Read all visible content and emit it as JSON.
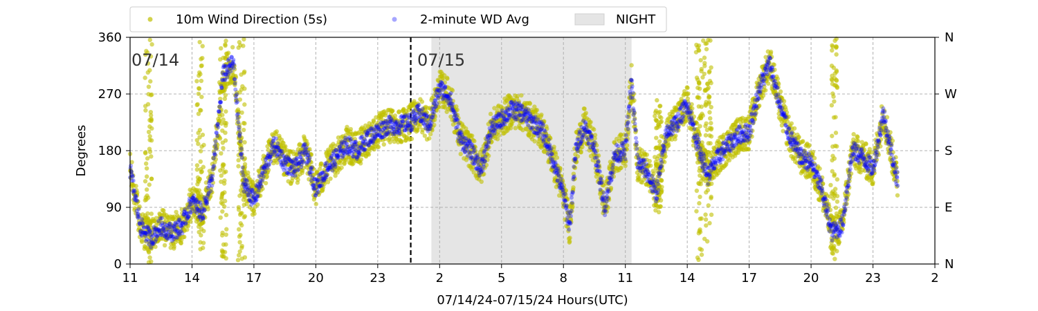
{
  "chart_data": {
    "type": "scatter",
    "xlabel": "07/14/24-07/15/24  Hours(UTC)",
    "ylabel": "Degrees",
    "x_range_hours": [
      11,
      50
    ],
    "ylim": [
      0,
      360
    ],
    "x_ticks": [
      {
        "hour": 11,
        "label": "11"
      },
      {
        "hour": 14,
        "label": "14"
      },
      {
        "hour": 17,
        "label": "17"
      },
      {
        "hour": 20,
        "label": "20"
      },
      {
        "hour": 23,
        "label": "23"
      },
      {
        "hour": 26,
        "label": "2"
      },
      {
        "hour": 29,
        "label": "5"
      },
      {
        "hour": 32,
        "label": "8"
      },
      {
        "hour": 35,
        "label": "11"
      },
      {
        "hour": 38,
        "label": "14"
      },
      {
        "hour": 41,
        "label": "17"
      },
      {
        "hour": 44,
        "label": "20"
      },
      {
        "hour": 47,
        "label": "23"
      },
      {
        "hour": 50,
        "label": "2"
      }
    ],
    "y_ticks": [
      0,
      90,
      180,
      270,
      360
    ],
    "right_ticks": [
      {
        "value": 0,
        "label": "N"
      },
      {
        "value": 90,
        "label": "E"
      },
      {
        "value": 180,
        "label": "S"
      },
      {
        "value": 270,
        "label": "W"
      },
      {
        "value": 360,
        "label": "N"
      }
    ],
    "grid": true,
    "legend": {
      "placement": "top",
      "entries": [
        {
          "label": "10m Wind Direction (5s)",
          "color": "#bfbf00",
          "marker": "dot"
        },
        {
          "label": "2-minute WD Avg",
          "color": "#0000ff",
          "marker": "dot"
        },
        {
          "label": "NIGHT",
          "color": "#e5e5e5",
          "marker": "patch"
        }
      ]
    },
    "day_marker": {
      "hour": 24.6,
      "style": "dashed",
      "color": "#000000"
    },
    "night_band": {
      "start_hour": 25.6,
      "end_hour": 35.3,
      "color": "#e5e5e5"
    },
    "date_labels": [
      {
        "text": "07/14",
        "hour": 11
      },
      {
        "text": "07/15",
        "hour": 24.85
      }
    ],
    "series": [
      {
        "name": "10m Wind Direction (5s)",
        "color": "#bfbf00",
        "spread_deg": 28,
        "trend": [
          [
            11.0,
            150
          ],
          [
            11.5,
            60
          ],
          [
            12.0,
            40
          ],
          [
            12.5,
            60
          ],
          [
            13.0,
            50
          ],
          [
            13.5,
            60
          ],
          [
            14.0,
            100
          ],
          [
            14.5,
            80
          ],
          [
            15.0,
            140
          ],
          [
            15.5,
            300
          ],
          [
            16.0,
            320
          ],
          [
            16.5,
            130
          ],
          [
            17.0,
            100
          ],
          [
            17.5,
            150
          ],
          [
            18.0,
            190
          ],
          [
            18.5,
            160
          ],
          [
            19.0,
            150
          ],
          [
            19.5,
            180
          ],
          [
            20.0,
            120
          ],
          [
            20.5,
            150
          ],
          [
            21.0,
            170
          ],
          [
            21.5,
            190
          ],
          [
            22.0,
            180
          ],
          [
            22.5,
            200
          ],
          [
            23.0,
            210
          ],
          [
            23.5,
            220
          ],
          [
            24.0,
            220
          ],
          [
            24.6,
            225
          ],
          [
            25.0,
            240
          ],
          [
            25.5,
            220
          ],
          [
            26.0,
            280
          ],
          [
            26.5,
            265
          ],
          [
            27.0,
            200
          ],
          [
            27.5,
            180
          ],
          [
            28.0,
            150
          ],
          [
            28.5,
            215
          ],
          [
            29.0,
            230
          ],
          [
            29.5,
            245
          ],
          [
            30.0,
            240
          ],
          [
            30.5,
            225
          ],
          [
            31.0,
            210
          ],
          [
            31.5,
            165
          ],
          [
            32.0,
            110
          ],
          [
            32.3,
            60
          ],
          [
            32.6,
            180
          ],
          [
            33.0,
            220
          ],
          [
            33.5,
            185
          ],
          [
            34.0,
            90
          ],
          [
            34.5,
            175
          ],
          [
            35.0,
            180
          ],
          [
            35.3,
            290
          ],
          [
            35.6,
            160
          ],
          [
            36.0,
            150
          ],
          [
            36.5,
            110
          ],
          [
            37.0,
            210
          ],
          [
            37.5,
            225
          ],
          [
            38.0,
            255
          ],
          [
            38.5,
            190
          ],
          [
            39.0,
            140
          ],
          [
            39.5,
            170
          ],
          [
            40.0,
            190
          ],
          [
            40.5,
            205
          ],
          [
            41.0,
            210
          ],
          [
            41.5,
            280
          ],
          [
            42.0,
            320
          ],
          [
            42.5,
            250
          ],
          [
            43.0,
            200
          ],
          [
            43.5,
            170
          ],
          [
            44.0,
            160
          ],
          [
            44.5,
            120
          ],
          [
            45.0,
            50
          ],
          [
            45.5,
            60
          ],
          [
            46.0,
            180
          ],
          [
            46.5,
            170
          ],
          [
            47.0,
            150
          ],
          [
            47.5,
            240
          ],
          [
            48.0,
            160
          ],
          [
            48.2,
            130
          ]
        ],
        "bursts": [
          {
            "hour": 11.9,
            "low": 0,
            "high": 360
          },
          {
            "hour": 14.4,
            "low": 20,
            "high": 360
          },
          {
            "hour": 15.5,
            "low": 0,
            "high": 360
          },
          {
            "hour": 16.4,
            "low": 0,
            "high": 360
          },
          {
            "hour": 36.6,
            "low": 80,
            "high": 260
          },
          {
            "hour": 38.6,
            "low": 0,
            "high": 360
          },
          {
            "hour": 39.0,
            "low": 30,
            "high": 360
          },
          {
            "hour": 45.1,
            "low": 0,
            "high": 360
          }
        ]
      },
      {
        "name": "2-minute WD Avg",
        "color": "#0000ff",
        "spread_deg": 14,
        "trend": [
          [
            11.0,
            150
          ],
          [
            11.5,
            60
          ],
          [
            12.0,
            40
          ],
          [
            12.5,
            60
          ],
          [
            13.0,
            50
          ],
          [
            13.5,
            60
          ],
          [
            14.0,
            100
          ],
          [
            14.5,
            80
          ],
          [
            15.0,
            140
          ],
          [
            15.5,
            300
          ],
          [
            16.0,
            320
          ],
          [
            16.5,
            130
          ],
          [
            17.0,
            100
          ],
          [
            17.5,
            150
          ],
          [
            18.0,
            190
          ],
          [
            18.5,
            160
          ],
          [
            19.0,
            150
          ],
          [
            19.5,
            180
          ],
          [
            20.0,
            120
          ],
          [
            20.5,
            150
          ],
          [
            21.0,
            170
          ],
          [
            21.5,
            190
          ],
          [
            22.0,
            180
          ],
          [
            22.5,
            200
          ],
          [
            23.0,
            210
          ],
          [
            23.5,
            220
          ],
          [
            24.0,
            220
          ],
          [
            24.6,
            225
          ],
          [
            25.0,
            240
          ],
          [
            25.5,
            220
          ],
          [
            26.0,
            280
          ],
          [
            26.5,
            265
          ],
          [
            27.0,
            200
          ],
          [
            27.5,
            180
          ],
          [
            28.0,
            150
          ],
          [
            28.5,
            215
          ],
          [
            29.0,
            230
          ],
          [
            29.5,
            245
          ],
          [
            30.0,
            240
          ],
          [
            30.5,
            225
          ],
          [
            31.0,
            210
          ],
          [
            31.5,
            165
          ],
          [
            32.0,
            110
          ],
          [
            32.3,
            60
          ],
          [
            32.6,
            180
          ],
          [
            33.0,
            220
          ],
          [
            33.5,
            185
          ],
          [
            34.0,
            90
          ],
          [
            34.5,
            175
          ],
          [
            35.0,
            180
          ],
          [
            35.3,
            290
          ],
          [
            35.6,
            160
          ],
          [
            36.0,
            150
          ],
          [
            36.5,
            110
          ],
          [
            37.0,
            210
          ],
          [
            37.5,
            225
          ],
          [
            38.0,
            255
          ],
          [
            38.5,
            190
          ],
          [
            39.0,
            140
          ],
          [
            39.5,
            170
          ],
          [
            40.0,
            190
          ],
          [
            40.5,
            205
          ],
          [
            41.0,
            210
          ],
          [
            41.5,
            280
          ],
          [
            42.0,
            320
          ],
          [
            42.5,
            250
          ],
          [
            43.0,
            200
          ],
          [
            43.5,
            170
          ],
          [
            44.0,
            160
          ],
          [
            44.5,
            120
          ],
          [
            45.0,
            50
          ],
          [
            45.5,
            60
          ],
          [
            46.0,
            180
          ],
          [
            46.5,
            170
          ],
          [
            47.0,
            150
          ],
          [
            47.5,
            240
          ],
          [
            48.0,
            160
          ],
          [
            48.2,
            130
          ]
        ]
      }
    ]
  }
}
